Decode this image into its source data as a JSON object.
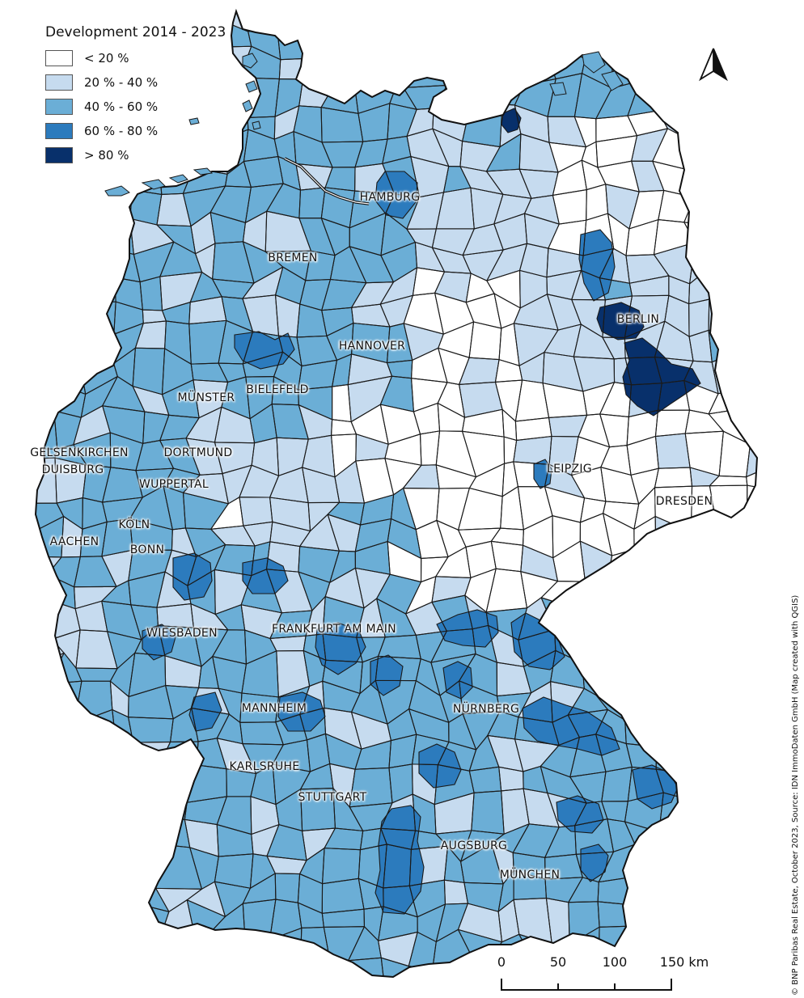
{
  "legend": {
    "title": "Development 2014 - 2023",
    "classes": [
      {
        "label": "< 20 %",
        "color": "#ffffff"
      },
      {
        "label": "20 % - 40 %",
        "color": "#c6dbef"
      },
      {
        "label": "40 % - 60 %",
        "color": "#6baed6"
      },
      {
        "label": "60 % - 80 %",
        "color": "#2c7bbd"
      },
      {
        "label": "> 80 %",
        "color": "#08306b"
      }
    ]
  },
  "cities": [
    {
      "name": "HAMBURG"
    },
    {
      "name": "BREMEN"
    },
    {
      "name": "HANNOVER"
    },
    {
      "name": "BERLIN"
    },
    {
      "name": "BIELEFELD"
    },
    {
      "name": "MÜNSTER"
    },
    {
      "name": "GELSENKIRCHEN"
    },
    {
      "name": "DORTMUND"
    },
    {
      "name": "DUISBURG"
    },
    {
      "name": "WUPPERTAL"
    },
    {
      "name": "KÖLN"
    },
    {
      "name": "AACHEN"
    },
    {
      "name": "BONN"
    },
    {
      "name": "LEIPZIG"
    },
    {
      "name": "DRESDEN"
    },
    {
      "name": "WIESBADEN"
    },
    {
      "name": "FRANKFURT AM MAIN"
    },
    {
      "name": "MANNHEIM"
    },
    {
      "name": "NÜRNBERG"
    },
    {
      "name": "KARLSRUHE"
    },
    {
      "name": "STUTTGART"
    },
    {
      "name": "AUGSBURG"
    },
    {
      "name": "MÜNCHEN"
    }
  ],
  "scalebar": {
    "ticks": [
      "0",
      "50",
      "100",
      "150 km"
    ]
  },
  "copyright": "© BNP Paribas Real Estate, October 2023, Source: IDN ImmoDaten GmbH (Map created with QGIS)",
  "icons": {
    "north_arrow": "north-arrow-icon"
  }
}
